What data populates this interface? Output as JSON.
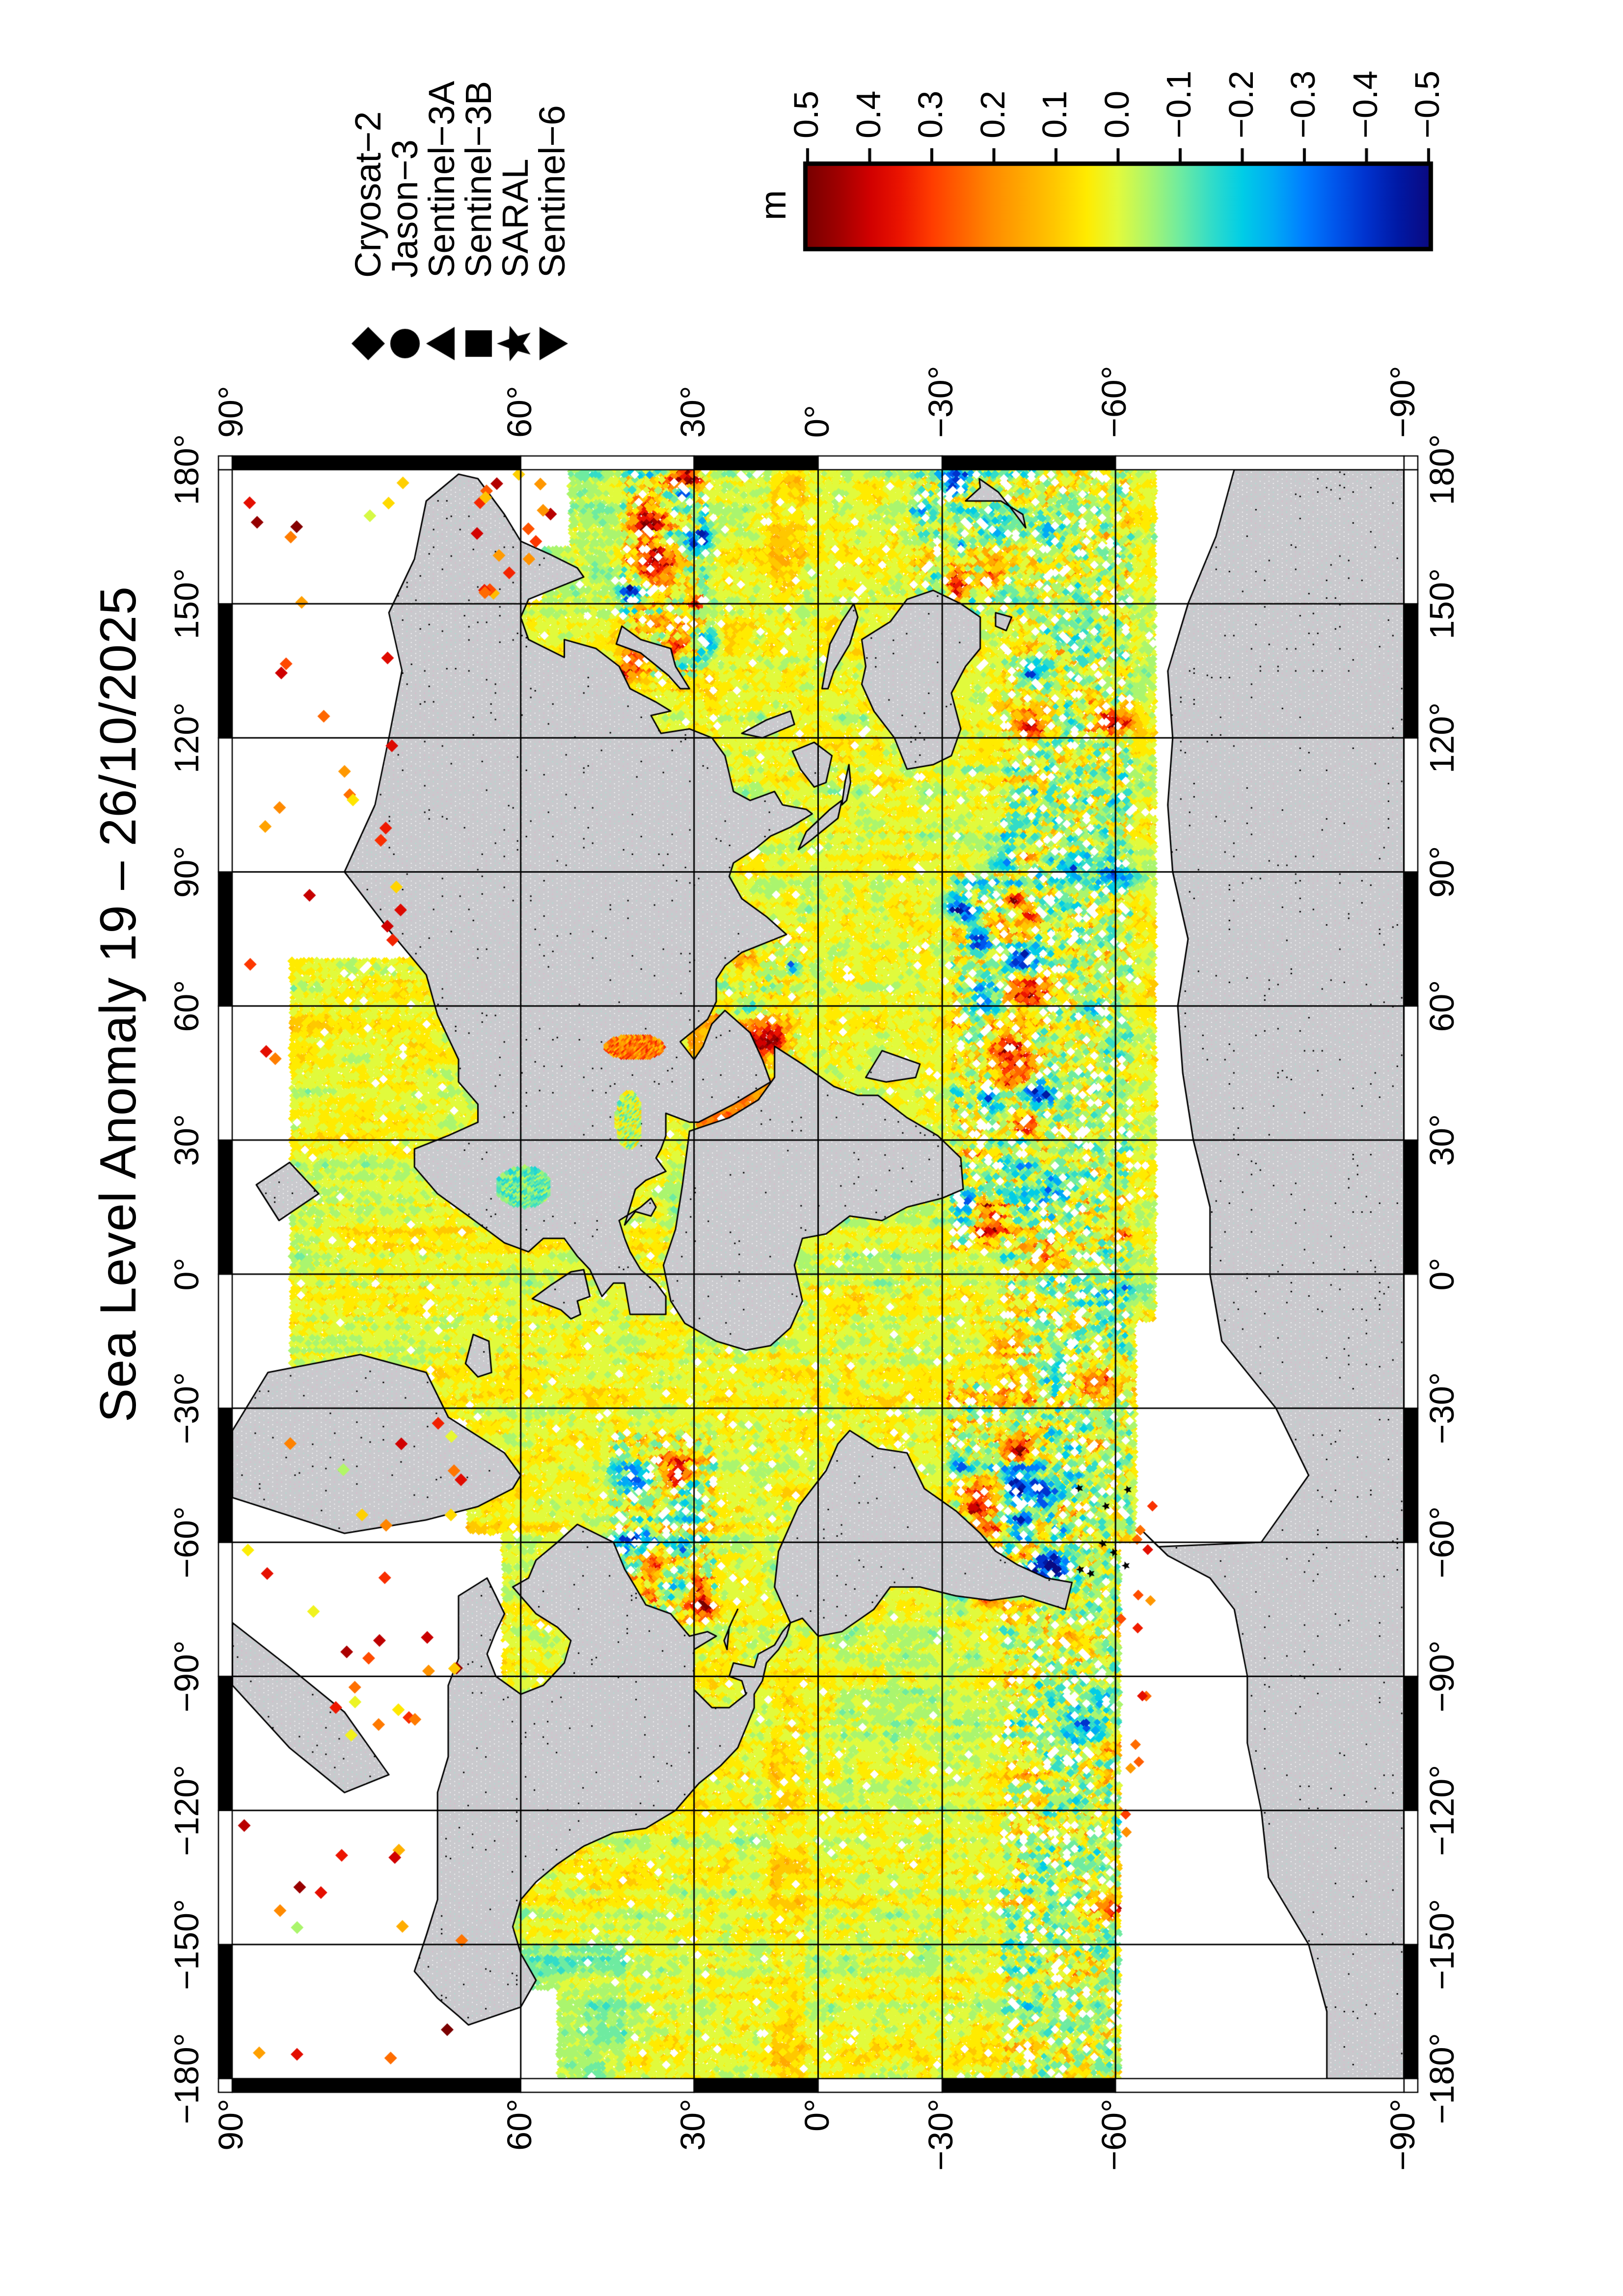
{
  "figure": {
    "title": "Sea Level Anomaly 19 – 26/10/2025",
    "background_color": "#ffffff"
  },
  "legend": {
    "entries": [
      {
        "label": "Cryosat−2",
        "symbol": "diamond"
      },
      {
        "label": "Jason−3",
        "symbol": "circle"
      },
      {
        "label": "Sentinel−3A",
        "symbol": "triangle-up"
      },
      {
        "label": "Sentinel−3B",
        "symbol": "square"
      },
      {
        "label": "SARAL",
        "symbol": "star"
      },
      {
        "label": "Sentinel−6",
        "symbol": "triangle-down"
      }
    ]
  },
  "colorbar": {
    "unit": "m",
    "tick_labels": [
      "0.5",
      "0.4",
      "0.3",
      "0.2",
      "0.1",
      "0.0",
      "−0.1",
      "−0.2",
      "−0.3",
      "−0.4",
      "−0.5"
    ],
    "tick_values": [
      0.5,
      0.4,
      0.3,
      0.2,
      0.1,
      0.0,
      -0.1,
      -0.2,
      -0.3,
      -0.4,
      -0.5
    ],
    "max": 0.5,
    "min": -0.5,
    "stops": [
      {
        "v": 0.5,
        "c": "#780000"
      },
      {
        "v": 0.45,
        "c": "#a00000"
      },
      {
        "v": 0.4,
        "c": "#d00000"
      },
      {
        "v": 0.35,
        "c": "#eb1400"
      },
      {
        "v": 0.3,
        "c": "#ff3c00"
      },
      {
        "v": 0.25,
        "c": "#ff6400"
      },
      {
        "v": 0.2,
        "c": "#ff8c00"
      },
      {
        "v": 0.15,
        "c": "#ffaa00"
      },
      {
        "v": 0.1,
        "c": "#ffc800"
      },
      {
        "v": 0.05,
        "c": "#ffeb00"
      },
      {
        "v": 0.0,
        "c": "#e1fa3c"
      },
      {
        "v": -0.05,
        "c": "#aaf56e"
      },
      {
        "v": -0.1,
        "c": "#6eeba0"
      },
      {
        "v": -0.15,
        "c": "#32dcc8"
      },
      {
        "v": -0.2,
        "c": "#00cde6"
      },
      {
        "v": -0.25,
        "c": "#00aaf5"
      },
      {
        "v": -0.3,
        "c": "#007dff"
      },
      {
        "v": -0.35,
        "c": "#0055eb"
      },
      {
        "v": -0.4,
        "c": "#0032cd"
      },
      {
        "v": -0.45,
        "c": "#0019a5"
      },
      {
        "v": -0.5,
        "c": "#0a0a82"
      }
    ]
  },
  "map": {
    "projection": "mercator",
    "lon_range": [
      -180,
      180
    ],
    "lat_range": [
      -90,
      90
    ],
    "grid_step_deg": 30,
    "land_color": "#c9c9cd",
    "coast_color": "#000000",
    "no_data_color": "#ffffff",
    "lon_tick_values": [
      -180,
      -150,
      -120,
      -90,
      -60,
      -30,
      0,
      30,
      60,
      90,
      120,
      150,
      180
    ],
    "lon_tick_labels": [
      "−180°",
      "−150°",
      "−120°",
      "−90°",
      "−60°",
      "−30°",
      "0°",
      "30°",
      "60°",
      "90°",
      "120°",
      "150°",
      "180°"
    ],
    "lat_tick_values": [
      90,
      60,
      30,
      0,
      -30,
      -60,
      -90
    ],
    "lat_tick_labels": [
      "90°",
      "60°",
      "30°",
      "0°",
      "−30°",
      "−60°",
      "−90°"
    ]
  }
}
